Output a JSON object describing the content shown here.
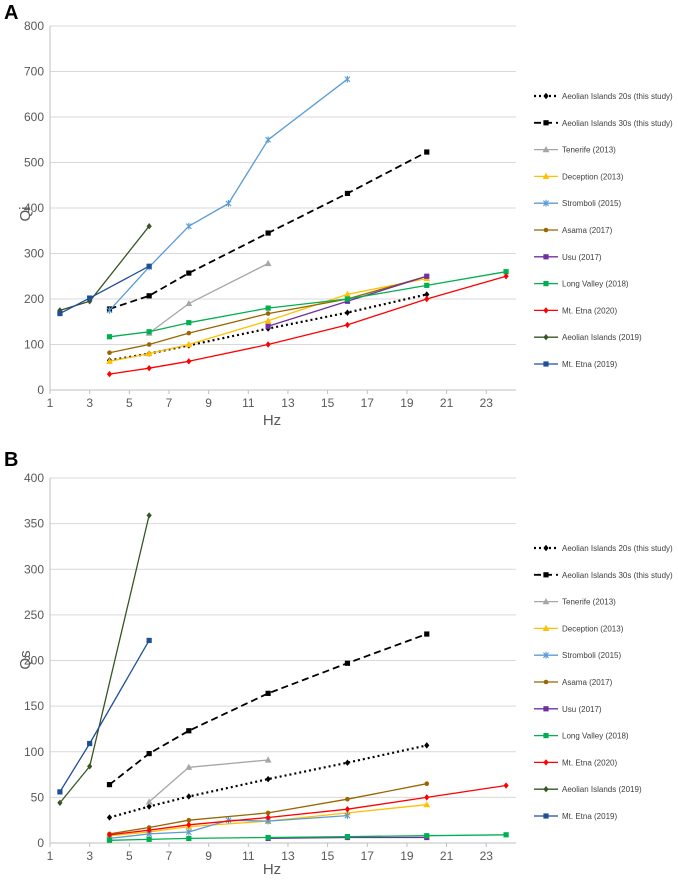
{
  "figure": {
    "series_style": [
      {
        "name": "Aeolian Islands 20s (this study)",
        "color": "#000000",
        "dash": "2,3",
        "width": 2.2,
        "marker": "diamond"
      },
      {
        "name": "Aeolian Islands 30s (this study)",
        "color": "#000000",
        "dash": "7,4",
        "width": 1.8,
        "marker": "square"
      },
      {
        "name": "Tenerife (2013)",
        "color": "#a6a6a6",
        "dash": "",
        "width": 1.3,
        "marker": "triangle"
      },
      {
        "name": "Deception (2013)",
        "color": "#ffc000",
        "dash": "",
        "width": 1.3,
        "marker": "triangle"
      },
      {
        "name": "Stromboli (2015)",
        "color": "#5b9bd5",
        "dash": "",
        "width": 1.3,
        "marker": "star"
      },
      {
        "name": "Asama (2017)",
        "color": "#996600",
        "dash": "",
        "width": 1.3,
        "marker": "circle"
      },
      {
        "name": "Usu (2017)",
        "color": "#7030a0",
        "dash": "",
        "width": 1.3,
        "marker": "square"
      },
      {
        "name": "Long Valley (2018)",
        "color": "#00b050",
        "dash": "",
        "width": 1.3,
        "marker": "square"
      },
      {
        "name": "Mt. Etna (2020)",
        "color": "#ff0000",
        "dash": "",
        "width": 1.3,
        "marker": "diamond"
      },
      {
        "name": "Aeolian Islands (2019)",
        "color": "#375623",
        "dash": "",
        "width": 1.3,
        "marker": "diamond"
      },
      {
        "name": "Mt. Etna (2019)",
        "color": "#1f4e9a",
        "dash": "",
        "width": 1.3,
        "marker": "square"
      }
    ]
  },
  "chart_data": [
    {
      "panel": "A",
      "type": "line",
      "xlabel": "Hz",
      "ylabel": "Qi",
      "xlim": [
        1,
        24.5
      ],
      "ylim": [
        0,
        800
      ],
      "xticks": [
        1,
        3,
        5,
        7,
        9,
        11,
        13,
        15,
        17,
        19,
        21,
        23
      ],
      "yticks": [
        0,
        100,
        200,
        300,
        400,
        500,
        600,
        700,
        800
      ],
      "legend_position": "right",
      "series": [
        {
          "name": "Aeolian Islands 20s (this study)",
          "x": [
            4,
            6,
            8,
            12,
            16,
            20
          ],
          "y": [
            65,
            80,
            98,
            135,
            170,
            210
          ]
        },
        {
          "name": "Aeolian Islands 30s (this study)",
          "x": [
            4,
            6,
            8,
            12,
            16,
            20
          ],
          "y": [
            178,
            207,
            257,
            345,
            432,
            523
          ]
        },
        {
          "name": "Tenerife (2013)",
          "x": [
            6,
            8,
            12
          ],
          "y": [
            125,
            190,
            278
          ]
        },
        {
          "name": "Deception (2013)",
          "x": [
            4,
            6,
            8,
            12,
            16,
            20
          ],
          "y": [
            63,
            80,
            100,
            152,
            210,
            245
          ]
        },
        {
          "name": "Stromboli (2015)",
          "x": [
            4,
            6,
            8,
            10,
            12,
            16
          ],
          "y": [
            175,
            270,
            360,
            410,
            550,
            683
          ]
        },
        {
          "name": "Asama (2017)",
          "x": [
            4,
            6,
            8,
            12,
            16,
            20
          ],
          "y": [
            82,
            100,
            125,
            168,
            200,
            250
          ]
        },
        {
          "name": "Usu (2017)",
          "x": [
            12,
            16,
            20
          ],
          "y": [
            140,
            195,
            250
          ]
        },
        {
          "name": "Long Valley (2018)",
          "x": [
            4,
            6,
            8,
            12,
            16,
            20,
            24
          ],
          "y": [
            117,
            128,
            148,
            180,
            200,
            230,
            260
          ]
        },
        {
          "name": "Mt. Etna (2020)",
          "x": [
            4,
            6,
            8,
            12,
            16,
            20,
            24
          ],
          "y": [
            35,
            48,
            63,
            100,
            143,
            200,
            250
          ]
        },
        {
          "name": "Aeolian Islands (2019)",
          "x": [
            1.5,
            3,
            6
          ],
          "y": [
            175,
            195,
            360
          ]
        },
        {
          "name": "Mt. Etna (2019)",
          "x": [
            1.5,
            3,
            6
          ],
          "y": [
            168,
            202,
            272
          ]
        }
      ]
    },
    {
      "panel": "B",
      "type": "line",
      "xlabel": "Hz",
      "ylabel": "Qs",
      "xlim": [
        1,
        24.5
      ],
      "ylim": [
        0,
        400
      ],
      "xticks": [
        1,
        3,
        5,
        7,
        9,
        11,
        13,
        15,
        17,
        19,
        21,
        23
      ],
      "yticks": [
        0,
        50,
        100,
        150,
        200,
        250,
        300,
        350,
        400
      ],
      "legend_position": "right",
      "series": [
        {
          "name": "Aeolian Islands 20s (this study)",
          "x": [
            4,
            6,
            8,
            12,
            16,
            20
          ],
          "y": [
            28,
            40,
            51,
            70,
            88,
            107
          ]
        },
        {
          "name": "Aeolian Islands 30s (this study)",
          "x": [
            4,
            6,
            8,
            12,
            16,
            20
          ],
          "y": [
            64,
            98,
            123,
            164,
            197,
            229
          ]
        },
        {
          "name": "Tenerife (2013)",
          "x": [
            6,
            8,
            12
          ],
          "y": [
            45,
            83,
            91
          ]
        },
        {
          "name": "Deception (2013)",
          "x": [
            4,
            6,
            8,
            12,
            16,
            20
          ],
          "y": [
            8,
            12,
            18,
            24,
            33,
            42
          ]
        },
        {
          "name": "Stromboli (2015)",
          "x": [
            4,
            6,
            8,
            10,
            12,
            16
          ],
          "y": [
            5,
            10,
            12,
            25,
            24,
            30
          ]
        },
        {
          "name": "Asama (2017)",
          "x": [
            4,
            6,
            8,
            12,
            16,
            20
          ],
          "y": [
            10,
            17,
            25,
            33,
            48,
            65
          ]
        },
        {
          "name": "Usu (2017)",
          "x": [
            12,
            16,
            20
          ],
          "y": [
            5,
            6,
            6
          ]
        },
        {
          "name": "Long Valley (2018)",
          "x": [
            4,
            6,
            8,
            12,
            16,
            20,
            24
          ],
          "y": [
            3,
            4,
            5,
            6,
            7,
            8,
            9
          ]
        },
        {
          "name": "Mt. Etna (2020)",
          "x": [
            4,
            6,
            8,
            12,
            16,
            20,
            24
          ],
          "y": [
            9,
            14,
            20,
            28,
            37,
            50,
            63
          ]
        },
        {
          "name": "Aeolian Islands (2019)",
          "x": [
            1.5,
            3,
            6
          ],
          "y": [
            44,
            84,
            359
          ]
        },
        {
          "name": "Mt. Etna (2019)",
          "x": [
            1.5,
            3,
            6
          ],
          "y": [
            56,
            109,
            222
          ]
        }
      ]
    }
  ]
}
